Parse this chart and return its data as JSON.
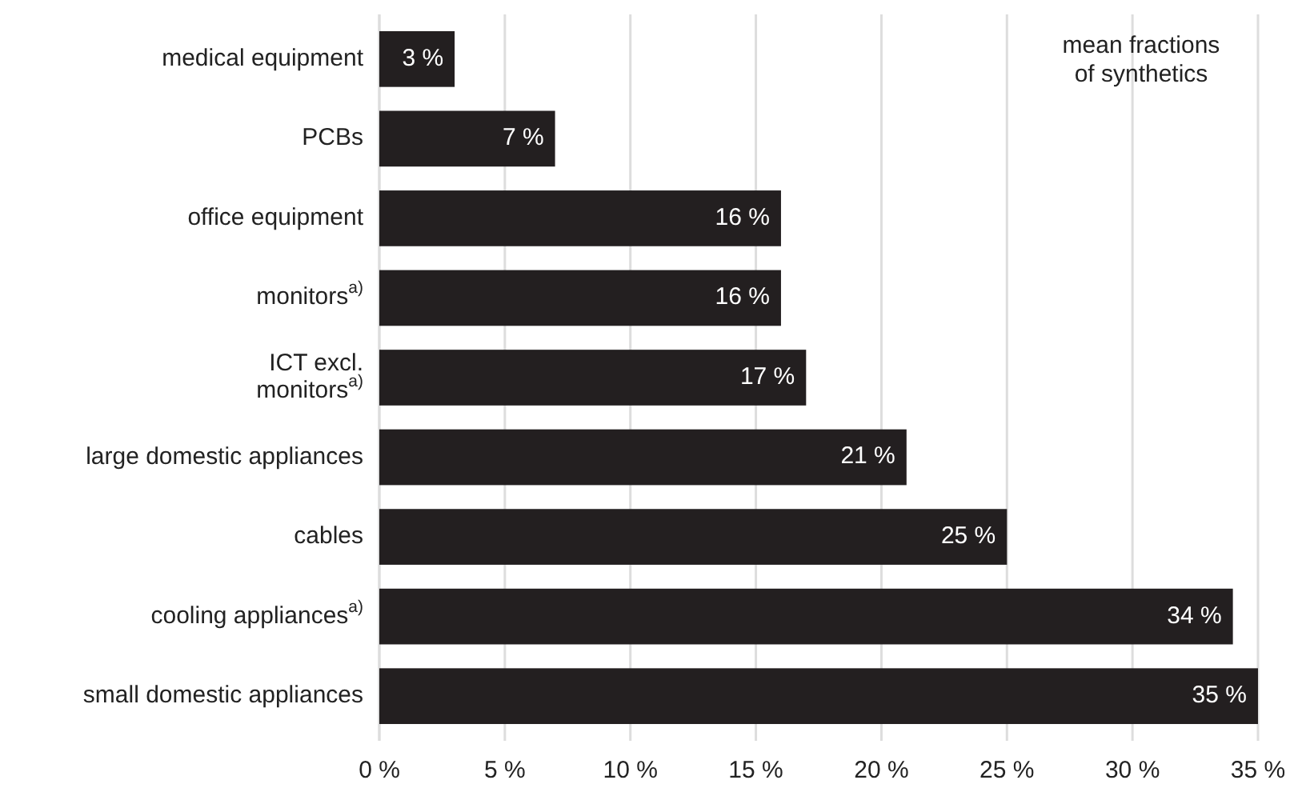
{
  "chart_data": {
    "type": "bar",
    "orientation": "horizontal",
    "categories": [
      "medical equipment",
      "PCBs",
      "office equipment",
      "monitors$^{a)}$",
      "ICT excl.\nmonitors$^{a)}$",
      "large domestic appliances",
      "cables",
      "cooling appliances$^{a)}$",
      "small domestic appliances"
    ],
    "values": [
      3,
      7,
      16,
      16,
      17,
      21,
      25,
      34,
      35
    ],
    "color": "#231f20",
    "value_labels": [
      "3 %",
      "7 %",
      "16 %",
      "16 %",
      "17 %",
      "21 %",
      "25 %",
      "34 %",
      "35 %"
    ],
    "xlim": [
      0,
      35
    ],
    "xticks": [
      {
        "value": 0,
        "label": "0 %"
      },
      {
        "value": 5,
        "label": "5 %"
      },
      {
        "value": 10,
        "label": "10 %"
      },
      {
        "value": 15,
        "label": "15 %"
      },
      {
        "value": 20,
        "label": "20 %"
      },
      {
        "value": 25,
        "label": "25 %"
      },
      {
        "value": 30,
        "label": "30 %"
      },
      {
        "value": 35,
        "label": "35 %"
      }
    ],
    "grid": "x",
    "annotations": [
      "mean fractions\nof synthetics"
    ]
  }
}
